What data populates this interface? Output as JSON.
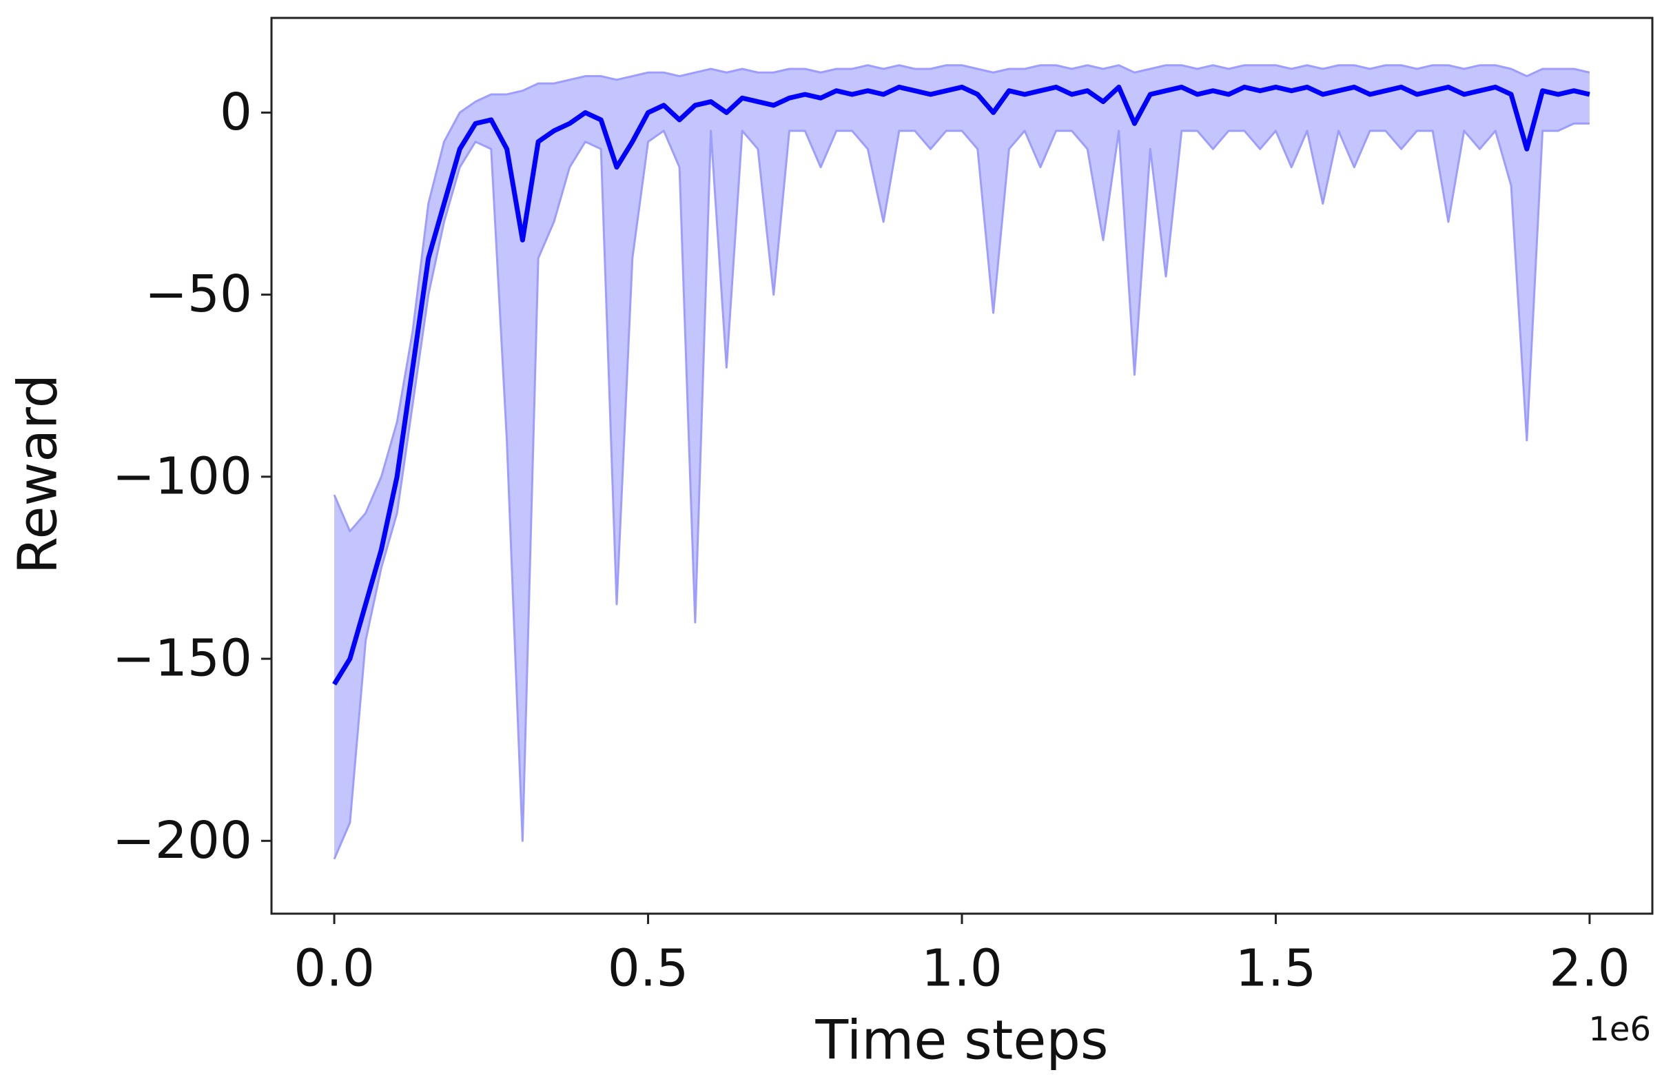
{
  "chart_data": {
    "type": "line",
    "xlabel": "Time steps",
    "ylabel": "Reward",
    "x_offset_label": "1e6",
    "color": "#0000ff",
    "band_color": "#9d9dff",
    "x": [
      0,
      0.025,
      0.05,
      0.075,
      0.1,
      0.125,
      0.15,
      0.175,
      0.2,
      0.225,
      0.25,
      0.275,
      0.3,
      0.325,
      0.35,
      0.375,
      0.4,
      0.425,
      0.45,
      0.475,
      0.5,
      0.525,
      0.55,
      0.575,
      0.6,
      0.625,
      0.65,
      0.675,
      0.7,
      0.725,
      0.75,
      0.775,
      0.8,
      0.825,
      0.85,
      0.875,
      0.9,
      0.925,
      0.95,
      0.975,
      1,
      1.025,
      1.05,
      1.075,
      1.1,
      1.125,
      1.15,
      1.175,
      1.2,
      1.225,
      1.25,
      1.275,
      1.3,
      1.325,
      1.35,
      1.375,
      1.4,
      1.425,
      1.45,
      1.475,
      1.5,
      1.525,
      1.55,
      1.575,
      1.6,
      1.625,
      1.65,
      1.675,
      1.7,
      1.725,
      1.75,
      1.775,
      1.8,
      1.825,
      1.85,
      1.875,
      1.9,
      1.925,
      1.95,
      1.975,
      2
    ],
    "values": [
      -157,
      -150,
      -135,
      -120,
      -100,
      -70,
      -40,
      -25,
      -10,
      -3,
      -2,
      -10,
      -35,
      -8,
      -5,
      -3,
      0,
      -2,
      -15,
      -8,
      0,
      2,
      -2,
      2,
      3,
      0,
      4,
      3,
      2,
      4,
      5,
      4,
      6,
      5,
      6,
      5,
      7,
      6,
      5,
      6,
      7,
      5,
      0,
      6,
      5,
      6,
      7,
      5,
      6,
      3,
      7,
      -3,
      5,
      6,
      7,
      5,
      6,
      5,
      7,
      6,
      7,
      6,
      7,
      5,
      6,
      7,
      5,
      6,
      7,
      5,
      6,
      7,
      5,
      6,
      7,
      5,
      -10,
      6,
      5,
      6,
      5
    ],
    "lower": [
      -205,
      -195,
      -145,
      -125,
      -110,
      -80,
      -50,
      -30,
      -15,
      -8,
      -10,
      -90,
      -200,
      -40,
      -30,
      -15,
      -8,
      -10,
      -135,
      -40,
      -8,
      -5,
      -15,
      -140,
      -5,
      -70,
      -5,
      -10,
      -50,
      -5,
      -5,
      -15,
      -5,
      -5,
      -10,
      -30,
      -5,
      -5,
      -10,
      -5,
      -5,
      -10,
      -55,
      -10,
      -5,
      -15,
      -5,
      -5,
      -10,
      -35,
      -5,
      -72,
      -10,
      -45,
      -5,
      -5,
      -10,
      -5,
      -5,
      -10,
      -5,
      -15,
      -5,
      -25,
      -5,
      -15,
      -5,
      -5,
      -10,
      -5,
      -5,
      -30,
      -5,
      -10,
      -5,
      -20,
      -90,
      -5,
      -5,
      -3,
      -3
    ],
    "upper": [
      -105,
      -115,
      -110,
      -100,
      -85,
      -60,
      -25,
      -8,
      0,
      3,
      5,
      5,
      6,
      8,
      8,
      9,
      10,
      10,
      9,
      10,
      11,
      11,
      10,
      11,
      12,
      11,
      12,
      11,
      11,
      12,
      12,
      11,
      12,
      12,
      13,
      12,
      13,
      12,
      12,
      13,
      13,
      12,
      11,
      12,
      12,
      13,
      13,
      12,
      13,
      12,
      13,
      11,
      12,
      13,
      13,
      12,
      13,
      12,
      13,
      13,
      13,
      12,
      13,
      12,
      13,
      13,
      12,
      13,
      13,
      12,
      13,
      13,
      12,
      13,
      13,
      12,
      10,
      12,
      12,
      12,
      11
    ],
    "xlim": [
      -0.1,
      2.1
    ],
    "ylim": [
      -220,
      26
    ],
    "xticks": [
      {
        "value": 0,
        "label": "0.0"
      },
      {
        "value": 0.5,
        "label": "0.5"
      },
      {
        "value": 1,
        "label": "1.0"
      },
      {
        "value": 1.5,
        "label": "1.5"
      },
      {
        "value": 2,
        "label": "2.0"
      }
    ],
    "yticks": [
      {
        "value": -200,
        "label": "−200"
      },
      {
        "value": -150,
        "label": "−150"
      },
      {
        "value": -100,
        "label": "−100"
      },
      {
        "value": -50,
        "label": "−50"
      },
      0
    ],
    "grid": false
  }
}
